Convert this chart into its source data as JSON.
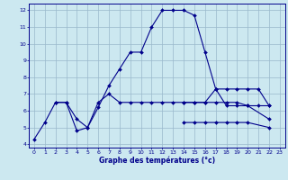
{
  "xlabel": "Graphe des températures (°c)",
  "xlim": [
    -0.5,
    23.5
  ],
  "ylim": [
    3.8,
    12.4
  ],
  "yticks": [
    4,
    5,
    6,
    7,
    8,
    9,
    10,
    11,
    12
  ],
  "xticks": [
    0,
    1,
    2,
    3,
    4,
    5,
    6,
    7,
    8,
    9,
    10,
    11,
    12,
    13,
    14,
    15,
    16,
    17,
    18,
    19,
    20,
    21,
    22,
    23
  ],
  "bg_color": "#cce8f0",
  "grid_color": "#99b8cc",
  "line_color": "#00008b",
  "line1_x": [
    0,
    1,
    2,
    3,
    4,
    5,
    6,
    7,
    8,
    9,
    10,
    11,
    12,
    13,
    14,
    15,
    16,
    17,
    18,
    19,
    20,
    21,
    22
  ],
  "line1_y": [
    4.3,
    5.3,
    6.5,
    6.5,
    4.8,
    5.0,
    6.2,
    7.5,
    8.5,
    9.5,
    9.5,
    11.0,
    12.0,
    12.0,
    12.0,
    11.7,
    9.5,
    7.3,
    6.3,
    6.3,
    6.3,
    6.3,
    6.3
  ],
  "line2_x": [
    2,
    3,
    4,
    5,
    6,
    7,
    8,
    9,
    10,
    11,
    12,
    13,
    14,
    15,
    16,
    17,
    18,
    19,
    20,
    21,
    22
  ],
  "line2_y": [
    6.5,
    6.5,
    5.5,
    5.0,
    6.5,
    7.0,
    6.5,
    6.5,
    6.5,
    6.5,
    6.5,
    6.5,
    6.5,
    6.5,
    6.5,
    7.3,
    7.3,
    7.3,
    7.3,
    7.3,
    6.3
  ],
  "line3_x": [
    14,
    15,
    16,
    17,
    18,
    19,
    20,
    22
  ],
  "line3_y": [
    6.5,
    6.5,
    6.5,
    6.5,
    6.5,
    6.5,
    6.3,
    5.5
  ],
  "line4_x": [
    14,
    15,
    16,
    17,
    18,
    19,
    20,
    22
  ],
  "line4_y": [
    5.3,
    5.3,
    5.3,
    5.3,
    5.3,
    5.3,
    5.3,
    5.0
  ]
}
